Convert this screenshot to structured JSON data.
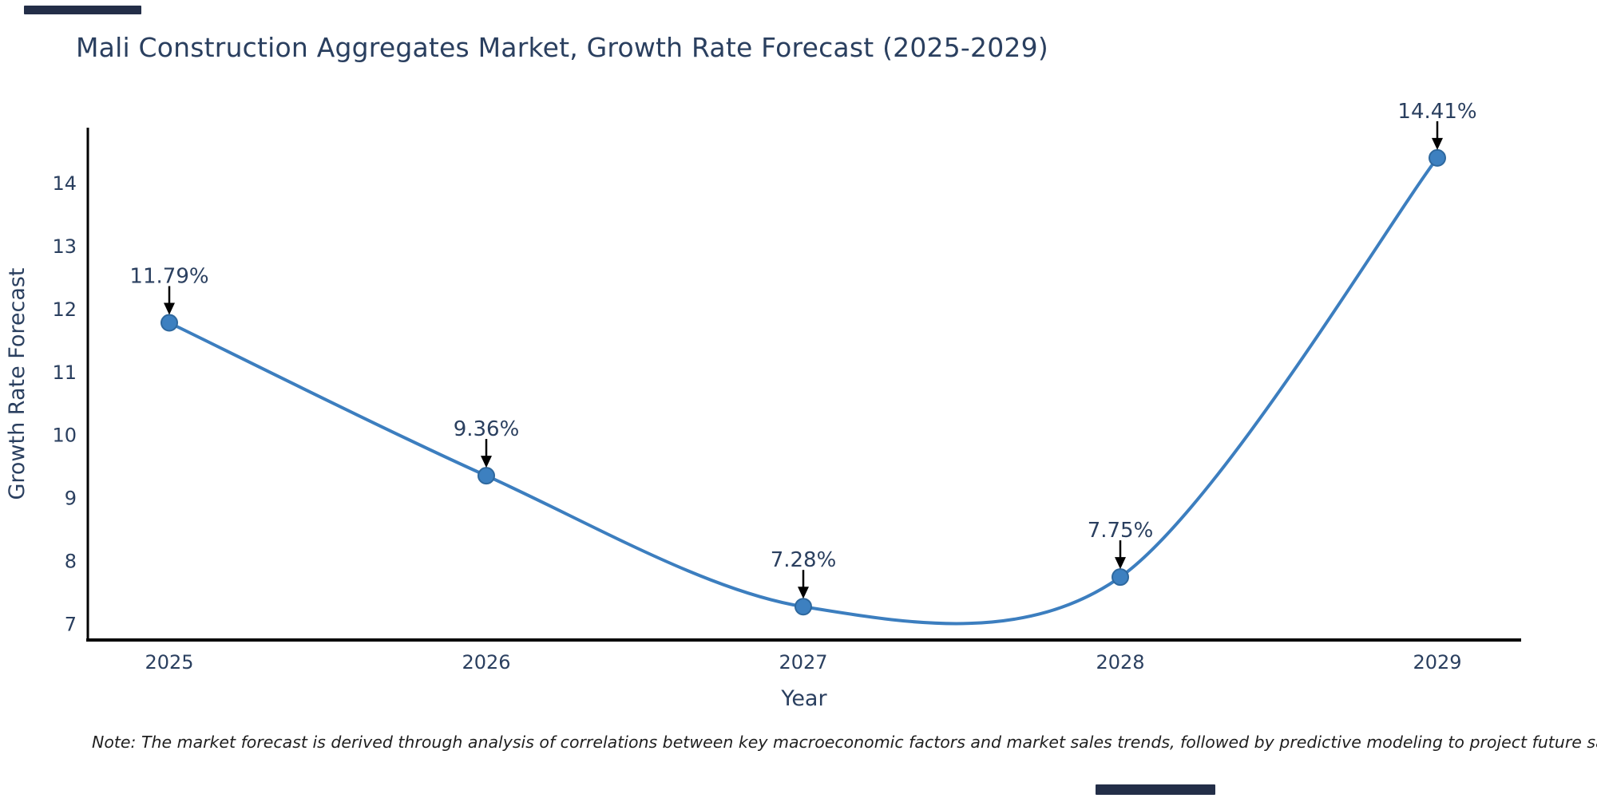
{
  "chart_data": {
    "type": "line",
    "title": "Mali Construction Aggregates Market, Growth Rate Forecast (2025-2029)",
    "categories": [
      "2025",
      "2026",
      "2027",
      "2028",
      "2029"
    ],
    "values": [
      11.79,
      9.36,
      7.28,
      7.75,
      14.41
    ],
    "point_labels": [
      "11.79%",
      "9.36%",
      "7.28%",
      "7.75%",
      "14.41%"
    ],
    "xlabel": "Year",
    "ylabel": "Growth Rate Forecast",
    "yticks": [
      7,
      8,
      9,
      10,
      11,
      12,
      13,
      14
    ],
    "ylim": [
      6.75,
      14.89
    ],
    "line_shape": "spline",
    "grid": false,
    "legend": false,
    "line_color": "#3c7ebf",
    "marker_color": "#3d80c0",
    "marker_edge_color": "#2e689e",
    "axis_color": "#000000",
    "text_color": "#2a3f5f",
    "annotation_arrow_color": "#000000"
  },
  "note": {
    "text": "Note: The market forecast is derived through analysis of correlations between key macroeconomic factors and market sales trends, followed by predictive modeling to project future sales"
  },
  "decoration": {
    "artifact_bar_color": "#232e48"
  }
}
